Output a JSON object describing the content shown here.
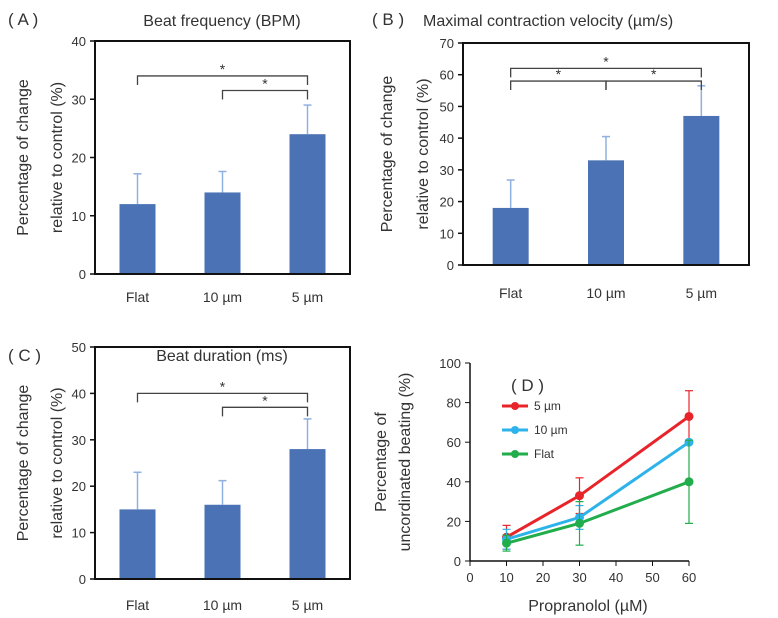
{
  "chart_data": [
    {
      "panel": "( A )",
      "type": "bar",
      "title": "Beat frequency (BPM)",
      "ylabel": [
        "Percentage of change",
        "relative to control (%)"
      ],
      "categories": [
        "Flat",
        "10 µm",
        "5 µm"
      ],
      "values": [
        12,
        14,
        24
      ],
      "errors": [
        5.2,
        3.6,
        5
      ],
      "yticks": [
        0,
        10,
        20,
        30,
        40
      ],
      "ylim": [
        0,
        40
      ],
      "significance": [
        {
          "from": 0,
          "to": 2,
          "label": "*",
          "level": 34
        },
        {
          "from": 1,
          "to": 2,
          "label": "*",
          "level": 31.5
        }
      ],
      "color": "#4a72b4"
    },
    {
      "panel": "( B )",
      "type": "bar",
      "title": "Maximal contraction velocity (µm/s)",
      "ylabel": [
        "Percentage of change",
        "relative to control (%)"
      ],
      "categories": [
        "Flat",
        "10 µm",
        "5 µm"
      ],
      "values": [
        18,
        33,
        47
      ],
      "errors": [
        8.8,
        7.5,
        9.5
      ],
      "yticks": [
        0,
        10,
        20,
        30,
        40,
        50,
        60,
        70
      ],
      "ylim": [
        0,
        70
      ],
      "significance": [
        {
          "from": 0,
          "to": 2,
          "label": "*",
          "level": 62
        },
        {
          "from": 0,
          "to": 1,
          "label": "*",
          "level": 58
        },
        {
          "from": 1,
          "to": 2,
          "label": "*",
          "level": 58
        }
      ],
      "color": "#4a72b4"
    },
    {
      "panel": "( C )",
      "type": "bar",
      "title": "Beat duration (ms)",
      "ylabel": [
        "Percentage of change",
        "relative to control (%)"
      ],
      "categories": [
        "Flat",
        "10 µm",
        "5 µm"
      ],
      "values": [
        15,
        16,
        28
      ],
      "errors": [
        8,
        5.2,
        6.5
      ],
      "yticks": [
        0,
        10,
        20,
        30,
        40,
        50
      ],
      "ylim": [
        0,
        50
      ],
      "significance": [
        {
          "from": 0,
          "to": 2,
          "label": "*",
          "level": 40
        },
        {
          "from": 1,
          "to": 2,
          "label": "*",
          "level": 37
        }
      ],
      "color": "#4a72b4"
    },
    {
      "panel": "( D )",
      "type": "line",
      "title": "",
      "xlabel": "Propranolol (µM)",
      "ylabel": [
        "Percentage of",
        "uncordinated beating (%)"
      ],
      "x": [
        10,
        30,
        60
      ],
      "xticks": [
        0,
        10,
        20,
        30,
        40,
        50,
        60
      ],
      "xlim": [
        0,
        60
      ],
      "yticks": [
        0,
        20,
        40,
        60,
        80,
        100
      ],
      "ylim": [
        0,
        100
      ],
      "series": [
        {
          "name": "5 µm",
          "values": [
            12,
            33,
            73
          ],
          "errors": [
            6,
            9,
            13
          ],
          "color": "#e8242a"
        },
        {
          "name": "10 µm",
          "values": [
            11,
            22,
            60
          ],
          "errors": [
            5,
            6,
            0
          ],
          "color": "#2db3ea"
        },
        {
          "name": "Flat",
          "values": [
            9,
            19,
            40
          ],
          "errors": [
            4,
            11,
            21
          ],
          "color": "#21ad4b"
        }
      ],
      "legend": "top-left"
    }
  ]
}
